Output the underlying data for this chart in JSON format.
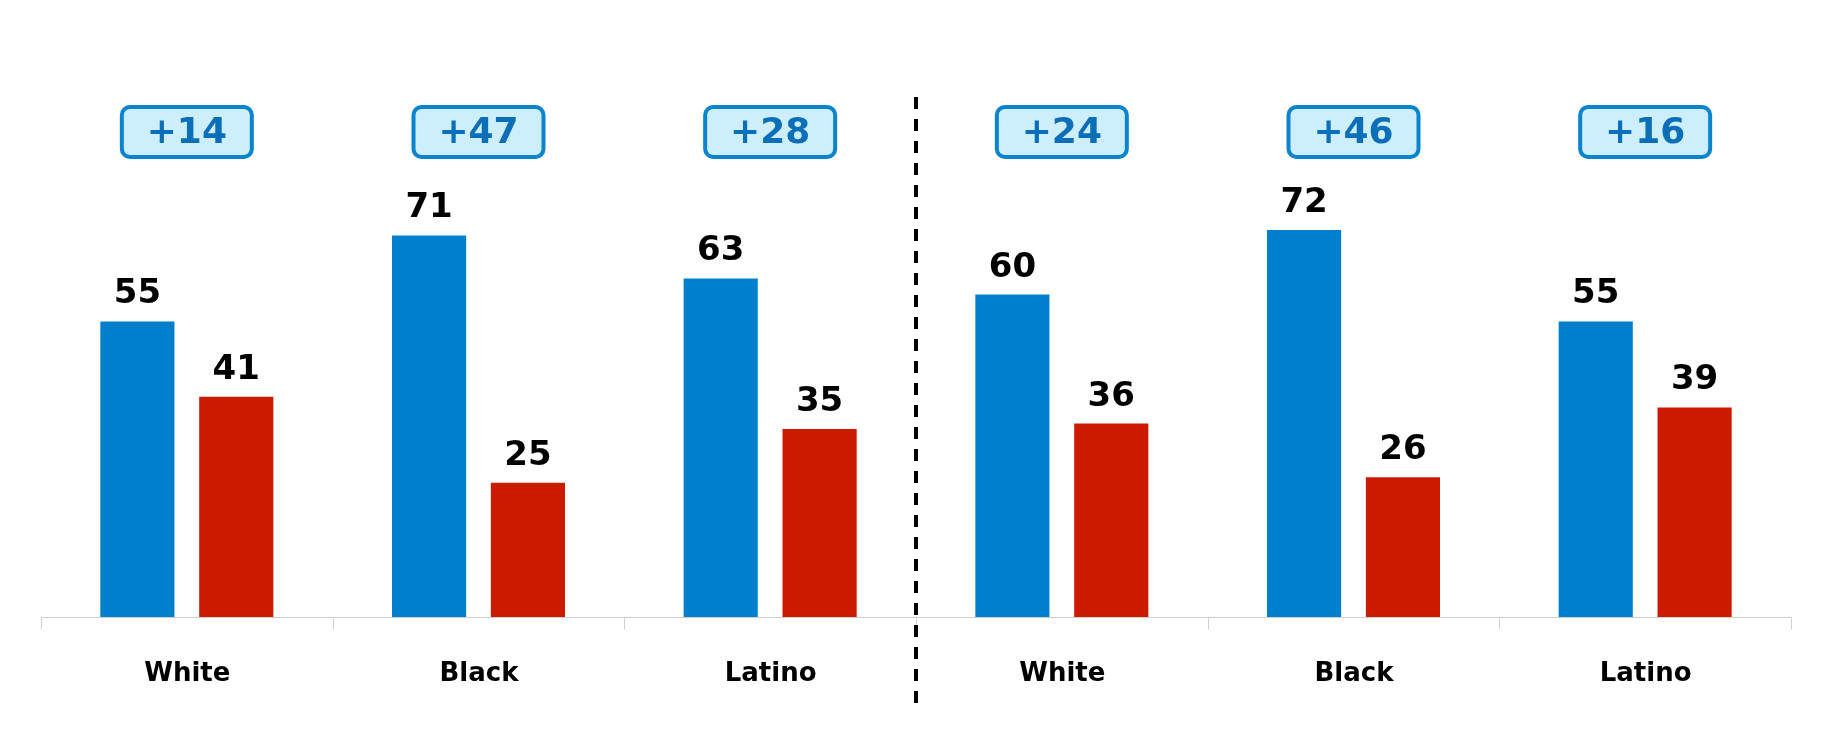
{
  "chart_data": {
    "type": "bar",
    "categories": [
      "White",
      "Black",
      "Latino",
      "White",
      "Black",
      "Latino"
    ],
    "series": [
      {
        "color": "#0080cc",
        "values": [
          55,
          71,
          63,
          60,
          72,
          55
        ]
      },
      {
        "color": "#cc1a00",
        "values": [
          41,
          25,
          35,
          36,
          26,
          39
        ]
      }
    ],
    "data_labels": true,
    "annotations": [
      "+14",
      "+47",
      "+28",
      "+24",
      "+46",
      "+16"
    ]
  }
}
